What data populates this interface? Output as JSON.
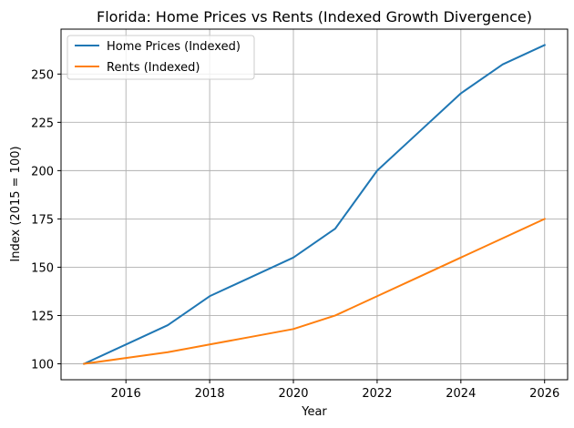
{
  "chart_data": {
    "type": "line",
    "title": "Florida: Home Prices vs Rents (Indexed Growth Divergence)",
    "xlabel": "Year",
    "ylabel": "Index (2015 = 100)",
    "x": [
      2015,
      2016,
      2017,
      2018,
      2019,
      2020,
      2021,
      2022,
      2023,
      2024,
      2025,
      2026
    ],
    "xlim": [
      2014.45,
      2026.55
    ],
    "ylim": [
      91.75,
      273.25
    ],
    "xticks": [
      2016,
      2018,
      2020,
      2022,
      2024,
      2026
    ],
    "yticks": [
      100,
      125,
      150,
      175,
      200,
      225,
      250
    ],
    "grid": true,
    "legend_position": "top-left",
    "series": [
      {
        "name": "Home Prices (Indexed)",
        "color": "#1f77b4",
        "values": [
          100,
          110,
          120,
          135,
          145,
          155,
          170,
          200,
          220,
          240,
          255,
          265
        ]
      },
      {
        "name": "Rents (Indexed)",
        "color": "#ff7f0e",
        "values": [
          100,
          103,
          106,
          110,
          114,
          118,
          125,
          135,
          145,
          155,
          165,
          175
        ]
      }
    ]
  }
}
